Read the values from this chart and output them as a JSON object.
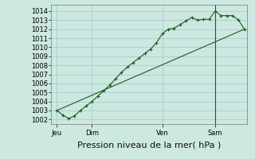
{
  "background_color": "#cce8e0",
  "grid_color": "#aacccc",
  "line_color": "#1a5c1a",
  "marker_color": "#1a5c1a",
  "title": "Pression niveau de la mer( hPa )",
  "ylim": [
    1001.5,
    1014.7
  ],
  "yticks": [
    1002,
    1003,
    1004,
    1005,
    1006,
    1007,
    1008,
    1009,
    1010,
    1011,
    1012,
    1013,
    1014
  ],
  "day_labels": [
    "Jeu",
    "Dim",
    "Ven",
    "Sam"
  ],
  "day_positions": [
    0,
    24,
    72,
    108
  ],
  "xlim": [
    -4,
    130
  ],
  "vline_x": 108,
  "series1_x": [
    0,
    4,
    8,
    12,
    16,
    20,
    24,
    28,
    32,
    36,
    40,
    44,
    48,
    52,
    56,
    60,
    64,
    68,
    72,
    76,
    80,
    84,
    88,
    92,
    96,
    100,
    104,
    108,
    112,
    116,
    120,
    124,
    128
  ],
  "series1_y": [
    1003.0,
    1002.5,
    1002.1,
    1002.4,
    1003.0,
    1003.5,
    1004.0,
    1004.6,
    1005.2,
    1005.8,
    1006.5,
    1007.2,
    1007.8,
    1008.3,
    1008.8,
    1009.3,
    1009.8,
    1010.5,
    1011.5,
    1012.0,
    1012.1,
    1012.5,
    1012.9,
    1013.3,
    1013.0,
    1013.1,
    1013.1,
    1014.0,
    1013.5,
    1013.5,
    1013.5,
    1013.0,
    1012.0
  ],
  "series2_x": [
    0,
    128
  ],
  "series2_y": [
    1003.0,
    1012.0
  ],
  "tick_fontsize": 6.0,
  "label_fontsize": 8.0
}
